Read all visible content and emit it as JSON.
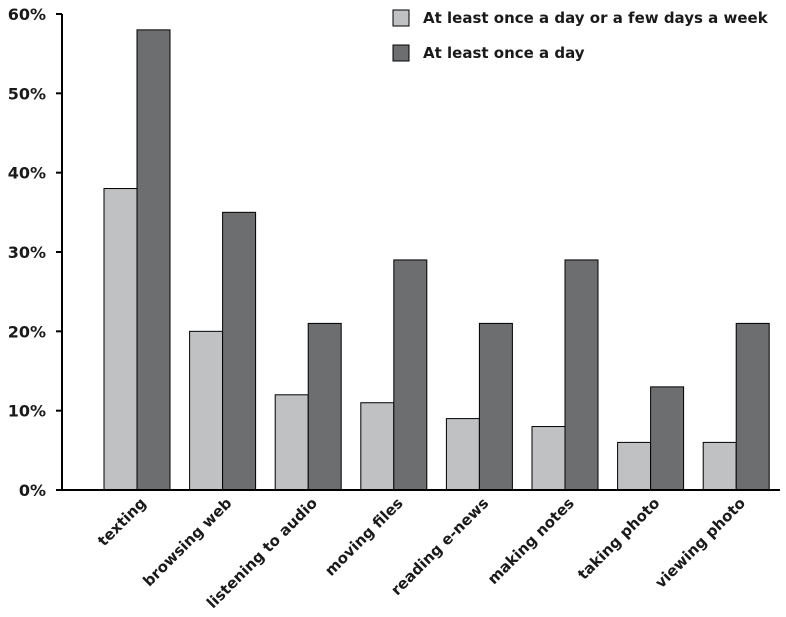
{
  "chart_data": {
    "type": "bar",
    "title": "",
    "xlabel": "",
    "ylabel": "",
    "ylim": [
      0,
      60
    ],
    "yticks": [
      "0%",
      "10%",
      "20%",
      "30%",
      "40%",
      "50%",
      "60%"
    ],
    "categories": [
      "texting",
      "browsing web",
      "listening to audio",
      "moving files",
      "reading e-news",
      "making notes",
      "taking photo",
      "viewing photo"
    ],
    "series": [
      {
        "name": "At least once a day or a few days a week",
        "color": "#c0c1c3",
        "values": [
          38,
          20,
          12,
          11,
          9,
          8,
          6,
          6
        ]
      },
      {
        "name": "At least once a day",
        "color": "#6d6e70",
        "values": [
          58,
          35,
          21,
          29,
          21,
          29,
          13,
          21
        ]
      }
    ],
    "grid": false,
    "legend_position": "top-right"
  }
}
